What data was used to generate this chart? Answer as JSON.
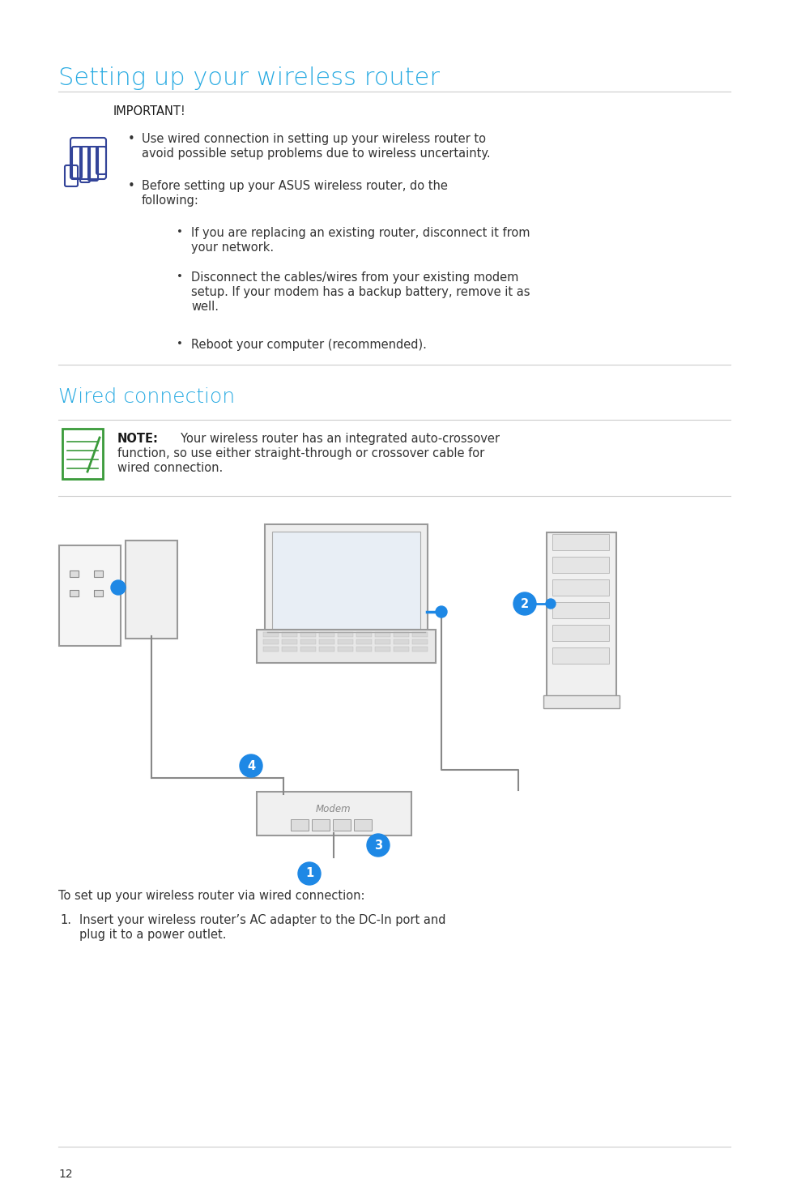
{
  "title": "Setting up your wireless router",
  "title_color": "#29ABE2",
  "section2_title": "Wired connection",
  "section2_color": "#29ABE2",
  "bg_color": "#FFFFFF",
  "text_color": "#333333",
  "bold_color": "#1a1a1a",
  "line_color": "#CCCCCC",
  "blue_circle_color": "#1E88E5",
  "green_color": "#3a9a3a",
  "hand_color": "#334499",
  "important_label": "IMPORTANT!",
  "bullet1_line1": "Use wired connection in setting up your wireless router to",
  "bullet1_line2": "avoid possible setup problems due to wireless uncertainty.",
  "bullet2_line1": "Before setting up your ASUS wireless router, do the",
  "bullet2_line2": "following:",
  "sub1_line1": "If you are replacing an existing router, disconnect it from",
  "sub1_line2": "your network.",
  "sub2_line1": "Disconnect the cables/wires from your existing modem",
  "sub2_line2": "setup. If your modem has a backup battery, remove it as",
  "sub2_line3": "well.",
  "sub3": "Reboot your computer (recommended).",
  "note_label": "NOTE:",
  "note_line1": "     Your wireless router has an integrated auto-crossover",
  "note_line2": "function, so use either straight-through or crossover cable for",
  "note_line3": "wired connection.",
  "footer": "To set up your wireless router via wired connection:",
  "step1_line1": "Insert your wireless router’s AC adapter to the DC-In port and",
  "step1_line2": "plug it to a power outlet.",
  "page_number": "12",
  "lm": 62,
  "rm": 892
}
